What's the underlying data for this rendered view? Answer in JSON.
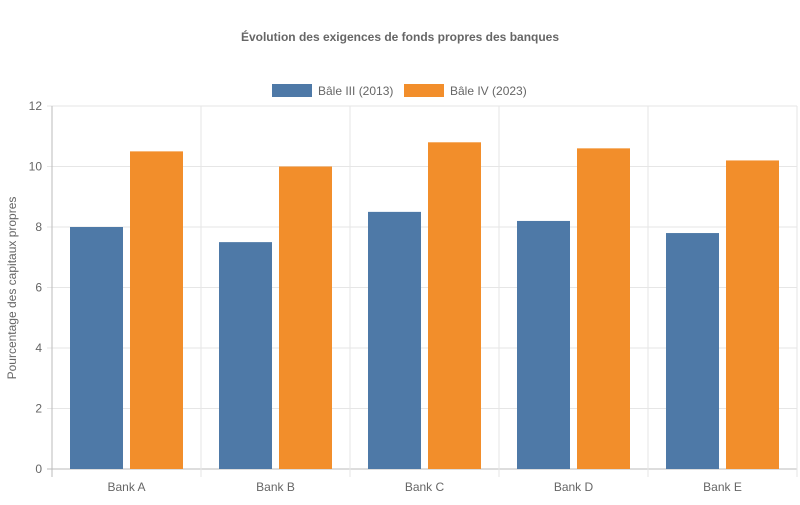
{
  "chart_data": {
    "type": "bar",
    "title": "Évolution des exigences de fonds propres des banques",
    "xlabel": "",
    "ylabel": "Pourcentage des capitaux propres",
    "categories": [
      "Bank A",
      "Bank B",
      "Bank C",
      "Bank D",
      "Bank E"
    ],
    "series": [
      {
        "name": "Bâle III (2013)",
        "color": "#4e79a7",
        "values": [
          8,
          7.5,
          8.5,
          8.2,
          7.8
        ]
      },
      {
        "name": "Bâle IV (2023)",
        "color": "#f28e2b",
        "values": [
          10.5,
          10,
          10.8,
          10.6,
          10.2
        ]
      }
    ],
    "ylim": [
      0,
      12
    ],
    "yticks": [
      "0",
      "2",
      "4",
      "6",
      "8",
      "10",
      "12"
    ],
    "grid": true,
    "legend": "top-center"
  }
}
